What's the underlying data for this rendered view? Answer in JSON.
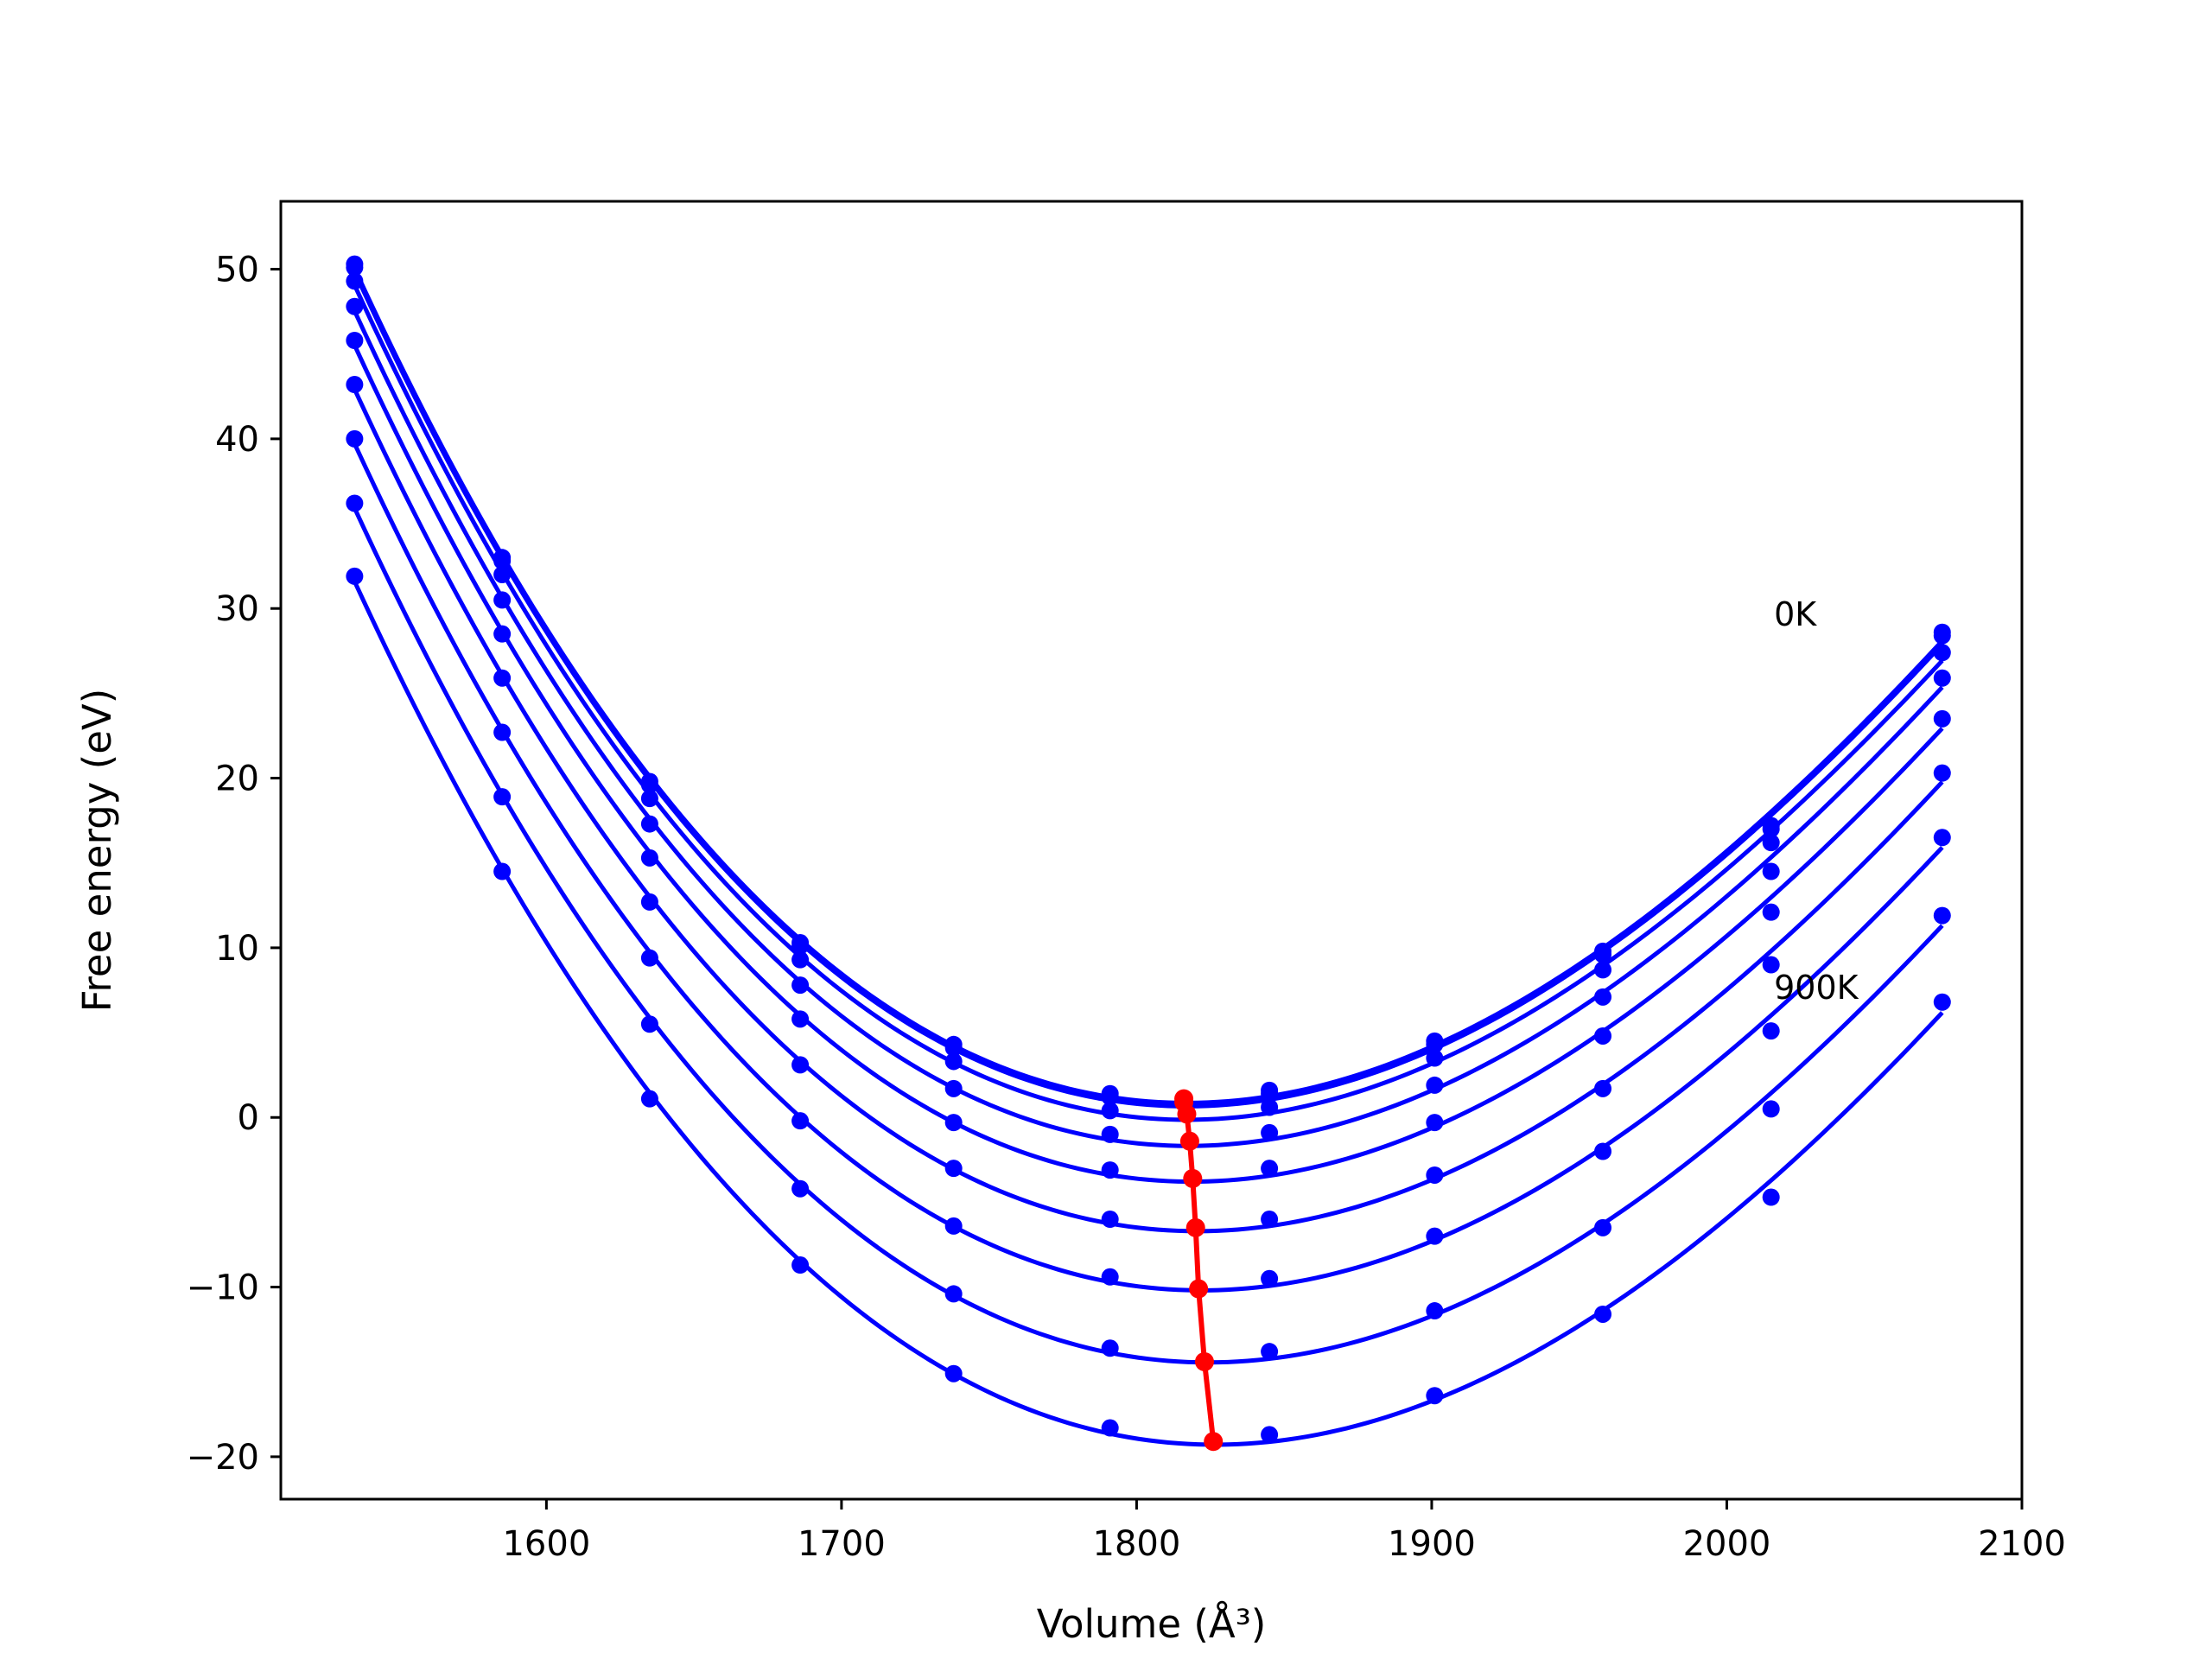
{
  "chart_data": {
    "type": "line",
    "title": "",
    "xlabel": "Volume (Å³)",
    "ylabel": "Free energy (eV)",
    "xlim": [
      1510,
      2100
    ],
    "ylim": [
      -22.5,
      54
    ],
    "xticks": [
      1600,
      1700,
      1800,
      1900,
      2000,
      2100
    ],
    "yticks": [
      -20,
      -10,
      0,
      10,
      20,
      30,
      40,
      50
    ],
    "grid": false,
    "legend": "none",
    "annotations": [
      {
        "text": "0K",
        "x": 2016,
        "y": 29
      },
      {
        "text": "900K",
        "x": 2016,
        "y": 7
      }
    ],
    "curve_color": "#0000ff",
    "minimum_color": "#ff0000",
    "volumes": [
      1535,
      1585,
      1635,
      1686,
      1738,
      1791,
      1845,
      1901,
      1958,
      2015,
      2073
    ],
    "series": [
      {
        "values": [
          50.3,
          33.0,
          19.8,
          10.3,
          4.3,
          1.4,
          1.6,
          4.5,
          9.8,
          17.2,
          28.6
        ]
      },
      {
        "values": [
          50.1,
          32.8,
          19.6,
          10.1,
          4.1,
          1.2,
          1.4,
          4.3,
          9.6,
          17.0,
          28.4
        ]
      },
      {
        "values": [
          49.3,
          32.0,
          18.8,
          9.3,
          3.3,
          0.4,
          0.6,
          3.5,
          8.7,
          16.2,
          27.4
        ]
      },
      {
        "values": [
          47.8,
          30.5,
          17.3,
          7.8,
          1.7,
          -1.0,
          -0.9,
          1.9,
          7.1,
          14.5,
          25.9
        ]
      },
      {
        "values": [
          45.8,
          28.5,
          15.3,
          5.8,
          -0.3,
          -3.1,
          -3.0,
          -0.3,
          4.8,
          12.1,
          23.5
        ]
      },
      {
        "values": [
          43.2,
          25.9,
          12.7,
          3.1,
          -3.0,
          -6.0,
          -6.0,
          -3.4,
          1.7,
          9.0,
          20.3
        ]
      },
      {
        "values": [
          40.0,
          22.7,
          9.4,
          -0.2,
          -6.4,
          -9.4,
          -9.5,
          -7.0,
          -2.0,
          5.1,
          16.5
        ]
      },
      {
        "values": [
          36.2,
          18.9,
          5.5,
          -4.2,
          -10.4,
          -13.6,
          -13.8,
          -11.4,
          -6.5,
          0.5,
          11.9
        ]
      },
      {
        "values": [
          31.9,
          14.5,
          1.1,
          -8.7,
          -15.1,
          -18.3,
          -18.7,
          -16.4,
          -11.6,
          -4.7,
          6.8
        ]
      }
    ],
    "minima": {
      "x": [
        1816,
        1816,
        1817,
        1818,
        1819,
        1820,
        1821,
        1823,
        1826
      ],
      "y": [
        1.1,
        0.9,
        0.2,
        -1.4,
        -3.6,
        -6.5,
        -10.1,
        -14.4,
        -19.1
      ]
    }
  }
}
